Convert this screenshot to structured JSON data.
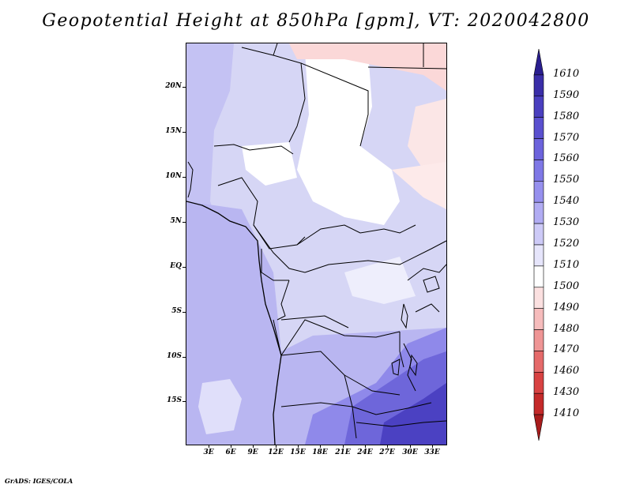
{
  "title": "Geopotential Height at 850hPa [gpm], VT: 2020042800",
  "credit": "GrADS: IGES/COLA",
  "lat_labels": [
    "20N",
    "15N",
    "10N",
    "5N",
    "EQ",
    "5S",
    "10S",
    "15S"
  ],
  "lon_labels": [
    "3E",
    "6E",
    "9E",
    "12E",
    "15E",
    "18E",
    "21E",
    "24E",
    "27E",
    "30E",
    "33E"
  ],
  "legend": {
    "levels": [
      "1610",
      "1590",
      "1580",
      "1570",
      "1560",
      "1550",
      "1540",
      "1530",
      "1520",
      "1510",
      "1500",
      "1490",
      "1480",
      "1470",
      "1460",
      "1430",
      "1410"
    ],
    "colors": [
      "#2a1e8f",
      "#3a2ea8",
      "#4a3fbf",
      "#5a50cf",
      "#6c63dc",
      "#7f78e6",
      "#9690ee",
      "#b1acf3",
      "#cdcaf7",
      "#e6e5fb",
      "#ffffff",
      "#fbe0e0",
      "#f6bcbc",
      "#ef9595",
      "#e56a6a",
      "#d84242",
      "#c42a2a",
      "#a81c1c"
    ]
  }
}
